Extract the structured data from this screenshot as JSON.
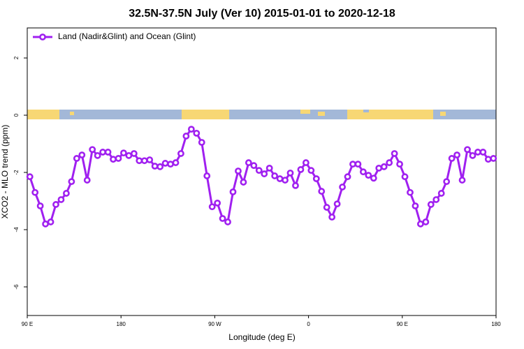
{
  "chart_data": {
    "type": "line",
    "title": "32.5N-37.5N July (Ver 10)   2015-01-01 to 2020-12-18",
    "x_label": "Longitude (deg E)",
    "y_label": "XCO2 - MLO trend (ppm)",
    "x": [
      92.5,
      97.5,
      102.5,
      107.5,
      112.5,
      117.5,
      122.5,
      127.5,
      132.5,
      137.5,
      142.5,
      147.5,
      152.5,
      157.5,
      162.5,
      167.5,
      172.5,
      177.5,
      182.5,
      187.5,
      192.5,
      197.5,
      202.5,
      207.5,
      212.5,
      217.5,
      222.5,
      227.5,
      232.5,
      237.5,
      242.5,
      247.5,
      252.5,
      257.5,
      262.5,
      267.5,
      272.5,
      277.5,
      282.5,
      287.5,
      292.5,
      297.5,
      302.5,
      307.5,
      312.5,
      317.5,
      322.5,
      327.5,
      332.5,
      337.5,
      342.5,
      347.5,
      352.5,
      357.5,
      362.5,
      367.5,
      372.5,
      377.5,
      382.5,
      387.5,
      392.5,
      397.5,
      402.5,
      407.5,
      412.5,
      417.5,
      422.5,
      427.5,
      432.5,
      437.5,
      442.5,
      447.5,
      452.5,
      457.5,
      462.5,
      467.5,
      472.5,
      477.5,
      482.5,
      487.5,
      492.5,
      497.5,
      502.5,
      507.5,
      512.5,
      517.5,
      522.5,
      527.5,
      532.5,
      537.5
    ],
    "series": [
      {
        "name": "Land (Nadir&Glint) and Ocean (Glint)",
        "color": "#a020f0",
        "values": [
          -2.15,
          -2.7,
          -3.17,
          -3.8,
          -3.73,
          -3.12,
          -2.95,
          -2.73,
          -2.32,
          -1.51,
          -1.39,
          -2.27,
          -1.2,
          -1.41,
          -1.29,
          -1.29,
          -1.54,
          -1.51,
          -1.32,
          -1.41,
          -1.34,
          -1.59,
          -1.59,
          -1.56,
          -1.78,
          -1.8,
          -1.68,
          -1.71,
          -1.66,
          -1.34,
          -0.73,
          -0.49,
          -0.63,
          -0.95,
          -2.12,
          -3.2,
          -3.07,
          -3.61,
          -3.73,
          -2.68,
          -1.95,
          -2.34,
          -1.66,
          -1.76,
          -1.93,
          -2.05,
          -1.85,
          -2.12,
          -2.22,
          -2.27,
          -2.02,
          -2.46,
          -1.9,
          -1.66,
          -1.93,
          -2.22,
          -2.66,
          -3.22,
          -3.56,
          -3.1,
          -2.51,
          -2.15,
          -1.71,
          -1.71,
          -1.98,
          -2.1,
          -2.2,
          -1.85,
          -1.8,
          -1.66,
          -1.34,
          -1.71,
          -2.15,
          -2.7,
          -3.17,
          -3.8,
          -3.73,
          -3.12,
          -2.95,
          -2.73,
          -2.32,
          -1.51,
          -1.39,
          -2.27,
          -1.2,
          -1.41,
          -1.29,
          -1.29,
          -1.54,
          -1.51
        ]
      }
    ],
    "xlim": [
      90,
      540
    ],
    "xticks": [
      {
        "value": 90,
        "label": "90 E"
      },
      180,
      {
        "value": 270,
        "label": "90 W"
      },
      {
        "value": 360,
        "label": "0"
      },
      {
        "value": 450,
        "label": "90 E"
      },
      {
        "value": 540,
        "label": "180"
      }
    ],
    "ylim": [
      -7,
      3.05
    ],
    "yticks": [
      -6,
      -4,
      -2,
      0,
      2
    ],
    "legend": "top-left"
  }
}
